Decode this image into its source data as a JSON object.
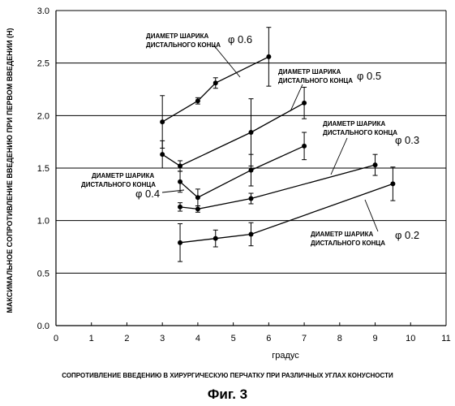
{
  "chart_data": {
    "type": "line",
    "ylabel": "МАКСИМАЛЬНОЕ СОПРОТИВЛЕНИЕ ВВЕДЕНИЮ ПРИ ПЕРВОМ ВВЕДЕНИИ (Н)",
    "xlabel": "градус",
    "xlim": [
      0,
      11
    ],
    "ylim": [
      0,
      3.0
    ],
    "x_ticks": [
      "0",
      "1",
      "2",
      "3",
      "4",
      "5",
      "6",
      "7",
      "8",
      "9",
      "10",
      "11"
    ],
    "y_ticks": [
      "0.0",
      "0.5",
      "1.0",
      "1.5",
      "2.0",
      "2.5",
      "3.0"
    ],
    "grid": "horizontal",
    "series": [
      {
        "name": "ДИАМЕТР ШАРИКА ДИСТАЛЬНОГО КОНЦА φ 0.6",
        "x": [
          3,
          4,
          4.5,
          6
        ],
        "y": [
          1.94,
          2.14,
          2.31,
          2.56
        ],
        "err": [
          0.25,
          0.03,
          0.05,
          0.28
        ]
      },
      {
        "name": "ДИАМЕТР ШАРИКА ДИСТАЛЬНОГО КОНЦА φ 0.5",
        "x": [
          3,
          3.5,
          5.5,
          7
        ],
        "y": [
          1.63,
          1.52,
          1.84,
          2.12
        ],
        "err": [
          0.13,
          0.05,
          0.32,
          0.15
        ]
      },
      {
        "name": "ДИАМЕТР ШАРИКА ДИСТАЛЬНОГО КОНЦА φ 0.4",
        "x": [
          3.5,
          4,
          5.5,
          7
        ],
        "y": [
          1.37,
          1.22,
          1.48,
          1.71
        ],
        "err": [
          0.1,
          0.08,
          0.15,
          0.13
        ]
      },
      {
        "name": "ДИАМЕТР ШАРИКА ДИСТАЛЬНОГО КОНЦА φ 0.3",
        "x": [
          3.5,
          4,
          5.5,
          9
        ],
        "y": [
          1.13,
          1.11,
          1.21,
          1.53
        ],
        "err": [
          0.04,
          0.03,
          0.05,
          0.1
        ]
      },
      {
        "name": "ДИАМЕТР ШАРИКА ДИСТАЛЬНОГО КОНЦА φ 0.2",
        "x": [
          3.5,
          4.5,
          5.5,
          9.5
        ],
        "y": [
          0.79,
          0.83,
          0.87,
          1.35
        ],
        "err": [
          0.18,
          0.08,
          0.11,
          0.16
        ]
      }
    ]
  },
  "annotations": [
    {
      "line1": "ДИАМЕТР ШАРИКА",
      "line2": "ДИСТАЛЬНОГО КОНЦА",
      "phi": "φ 0.6"
    },
    {
      "line1": "ДИАМЕТР ШАРИКА",
      "line2": "ДИСТАЛЬНОГО КОНЦА",
      "phi": "φ 0.5"
    },
    {
      "line1": "ДИАМЕТР ШАРИКА",
      "line2": "ДИСТАЛЬНОГО КОНЦА",
      "phi": "φ 0.3"
    },
    {
      "line1": "ДИАМЕТР ШАРИКА",
      "line2": "ДИСТАЛЬНОГО КОНЦА",
      "phi": "φ 0.4"
    },
    {
      "line1": "ДИАМЕТР ШАРИКА",
      "line2": "ДИСТАЛЬНОГО КОНЦА",
      "phi": "φ 0.2"
    }
  ],
  "caption": "СОПРОТИВЛЕНИЕ ВВЕДЕНИЮ В ХИРУРГИЧЕСКУЮ ПЕРЧАТКУ ПРИ РАЗЛИЧНЫХ УГЛАХ КОНУСНОСТИ",
  "figure_label": "Фиг. 3"
}
